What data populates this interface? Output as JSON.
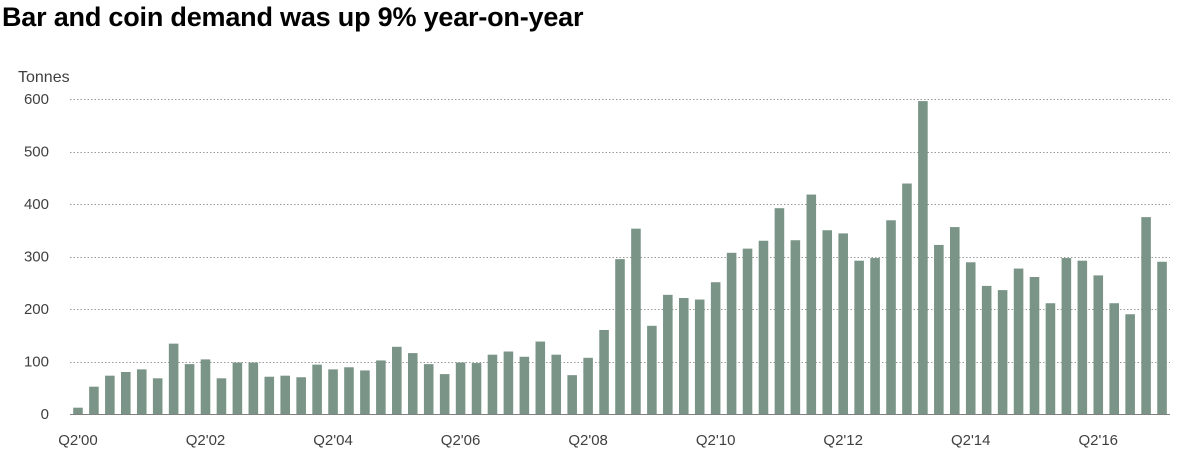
{
  "title": "Bar and coin demand was up 9% year-on-year",
  "chart_data": {
    "type": "bar",
    "title": "Bar and coin demand was up 9% year-on-year",
    "ylabel": "Tonnes",
    "xlabel": "",
    "ylim": [
      0,
      600
    ],
    "y_ticks": [
      0,
      100,
      200,
      300,
      400,
      500,
      600
    ],
    "grid": true,
    "bar_color": "#7a9487",
    "x_tick_labels": [
      "Q2'00",
      "Q2'02",
      "Q2'04",
      "Q2'06",
      "Q2'08",
      "Q2'10",
      "Q2'12",
      "Q2'14",
      "Q2'16"
    ],
    "categories": [
      "Q2'00",
      "Q3'00",
      "Q4'00",
      "Q1'01",
      "Q2'01",
      "Q3'01",
      "Q4'01",
      "Q1'02",
      "Q2'02",
      "Q3'02",
      "Q4'02",
      "Q1'03",
      "Q2'03",
      "Q3'03",
      "Q4'03",
      "Q1'04",
      "Q2'04",
      "Q3'04",
      "Q4'04",
      "Q1'05",
      "Q2'05",
      "Q3'05",
      "Q4'05",
      "Q1'06",
      "Q2'06",
      "Q3'06",
      "Q4'06",
      "Q1'07",
      "Q2'07",
      "Q3'07",
      "Q4'07",
      "Q1'08",
      "Q2'08",
      "Q3'08",
      "Q4'08",
      "Q1'09",
      "Q2'09",
      "Q3'09",
      "Q4'09",
      "Q1'10",
      "Q2'10",
      "Q3'10",
      "Q4'10",
      "Q1'11",
      "Q2'11",
      "Q3'11",
      "Q4'11",
      "Q1'12",
      "Q2'12",
      "Q3'12",
      "Q4'12",
      "Q1'13",
      "Q2'13",
      "Q3'13",
      "Q4'13",
      "Q1'14",
      "Q2'14",
      "Q3'14",
      "Q4'14",
      "Q1'15",
      "Q2'15",
      "Q3'15",
      "Q4'15",
      "Q1'16",
      "Q2'16",
      "Q3'16",
      "Q4'16",
      "Q1'17",
      "Q2'17"
    ],
    "values": [
      12,
      52,
      73,
      80,
      85,
      68,
      134,
      95,
      104,
      68,
      98,
      98,
      71,
      73,
      70,
      94,
      85,
      89,
      83,
      102,
      128,
      116,
      95,
      76,
      98,
      97,
      113,
      119,
      109,
      138,
      113,
      74,
      107,
      160,
      295,
      353,
      168,
      227,
      221,
      218,
      251,
      307,
      315,
      330,
      392,
      331,
      418,
      350,
      344,
      292,
      297,
      369,
      439,
      596,
      322,
      356,
      289,
      244,
      236,
      277,
      261,
      211,
      297,
      292,
      264,
      211,
      190,
      375,
      290
    ]
  }
}
